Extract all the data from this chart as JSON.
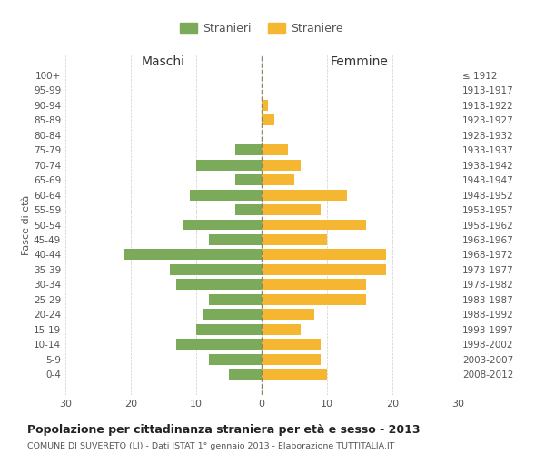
{
  "age_groups": [
    "0-4",
    "5-9",
    "10-14",
    "15-19",
    "20-24",
    "25-29",
    "30-34",
    "35-39",
    "40-44",
    "45-49",
    "50-54",
    "55-59",
    "60-64",
    "65-69",
    "70-74",
    "75-79",
    "80-84",
    "85-89",
    "90-94",
    "95-99",
    "100+"
  ],
  "birth_years": [
    "2008-2012",
    "2003-2007",
    "1998-2002",
    "1993-1997",
    "1988-1992",
    "1983-1987",
    "1978-1982",
    "1973-1977",
    "1968-1972",
    "1963-1967",
    "1958-1962",
    "1953-1957",
    "1948-1952",
    "1943-1947",
    "1938-1942",
    "1933-1937",
    "1928-1932",
    "1923-1927",
    "1918-1922",
    "1913-1917",
    "≤ 1912"
  ],
  "maschi": [
    5,
    8,
    13,
    10,
    9,
    8,
    13,
    14,
    21,
    8,
    12,
    4,
    11,
    4,
    10,
    4,
    0,
    0,
    0,
    0,
    0
  ],
  "femmine": [
    10,
    9,
    9,
    6,
    8,
    16,
    16,
    19,
    19,
    10,
    16,
    9,
    13,
    5,
    6,
    4,
    0,
    2,
    1,
    0,
    0
  ],
  "maschi_color": "#7aaa5a",
  "femmine_color": "#f5b731",
  "title": "Popolazione per cittadinanza straniera per età e sesso - 2013",
  "subtitle": "COMUNE DI SUVERETO (LI) - Dati ISTAT 1° gennaio 2013 - Elaborazione TUTTITALIA.IT",
  "xlabel_left": "Maschi",
  "xlabel_right": "Femmine",
  "ylabel_left": "Fasce di età",
  "legend_maschi": "Stranieri",
  "legend_femmine": "Straniere",
  "xlim": 30,
  "bar_height": 0.72,
  "background_color": "#ffffff",
  "grid_color": "#cccccc",
  "text_color": "#555555"
}
